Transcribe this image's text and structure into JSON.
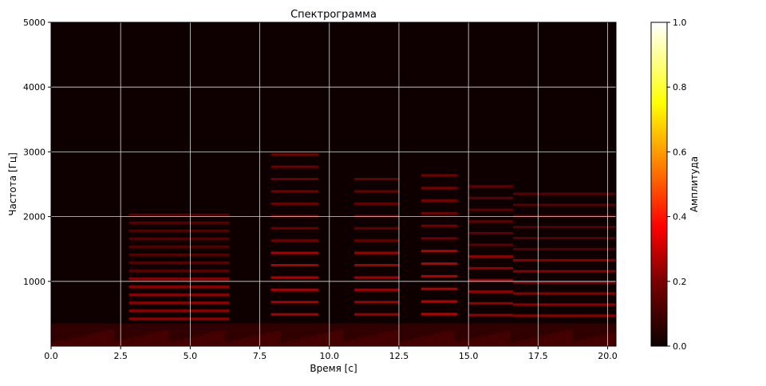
{
  "chart_data": [
    {
      "type": "heatmap",
      "title": "Спектрограмма",
      "xlabel": "Время [с]",
      "ylabel": "Частота [Гц]",
      "xlim": [
        0.0,
        20.3
      ],
      "ylim": [
        0,
        5000
      ],
      "x_ticks": [
        "0.0",
        "2.5",
        "5.0",
        "7.5",
        "10.0",
        "12.5",
        "15.0",
        "17.5",
        "20.0"
      ],
      "x_tick_values": [
        0.0,
        2.5,
        5.0,
        7.5,
        10.0,
        12.5,
        15.0,
        17.5,
        20.0
      ],
      "y_ticks": [
        "1000",
        "2000",
        "3000",
        "4000",
        "5000"
      ],
      "y_tick_values": [
        1000,
        2000,
        3000,
        4000,
        5000
      ],
      "grid": true,
      "colormap": "hot",
      "colorbar": {
        "label": "Амплитуда",
        "range": [
          0.0,
          1.0
        ],
        "ticks": [
          "0.0",
          "0.2",
          "0.4",
          "0.6",
          "0.8",
          "1.0"
        ],
        "tick_values": [
          0.0,
          0.2,
          0.4,
          0.6,
          0.8,
          1.0
        ]
      },
      "segments": [
        {
          "t0": 2.8,
          "t1": 6.4,
          "f0": 130,
          "bands": 14,
          "amp": 0.22
        },
        {
          "t0": 7.9,
          "t1": 9.6,
          "f0": 200,
          "bands": 14,
          "amp": 0.28
        },
        {
          "t0": 10.9,
          "t1": 12.5,
          "f0": 200,
          "bands": 12,
          "amp": 0.26
        },
        {
          "t0": 13.3,
          "t1": 14.6,
          "f0": 205,
          "bands": 12,
          "amp": 0.3
        },
        {
          "t0": 15.0,
          "t1": 16.6,
          "f0": 190,
          "bands": 12,
          "amp": 0.24
        },
        {
          "t0": 16.6,
          "t1": 20.3,
          "f0": 180,
          "bands": 12,
          "amp": 0.22
        }
      ]
    }
  ]
}
